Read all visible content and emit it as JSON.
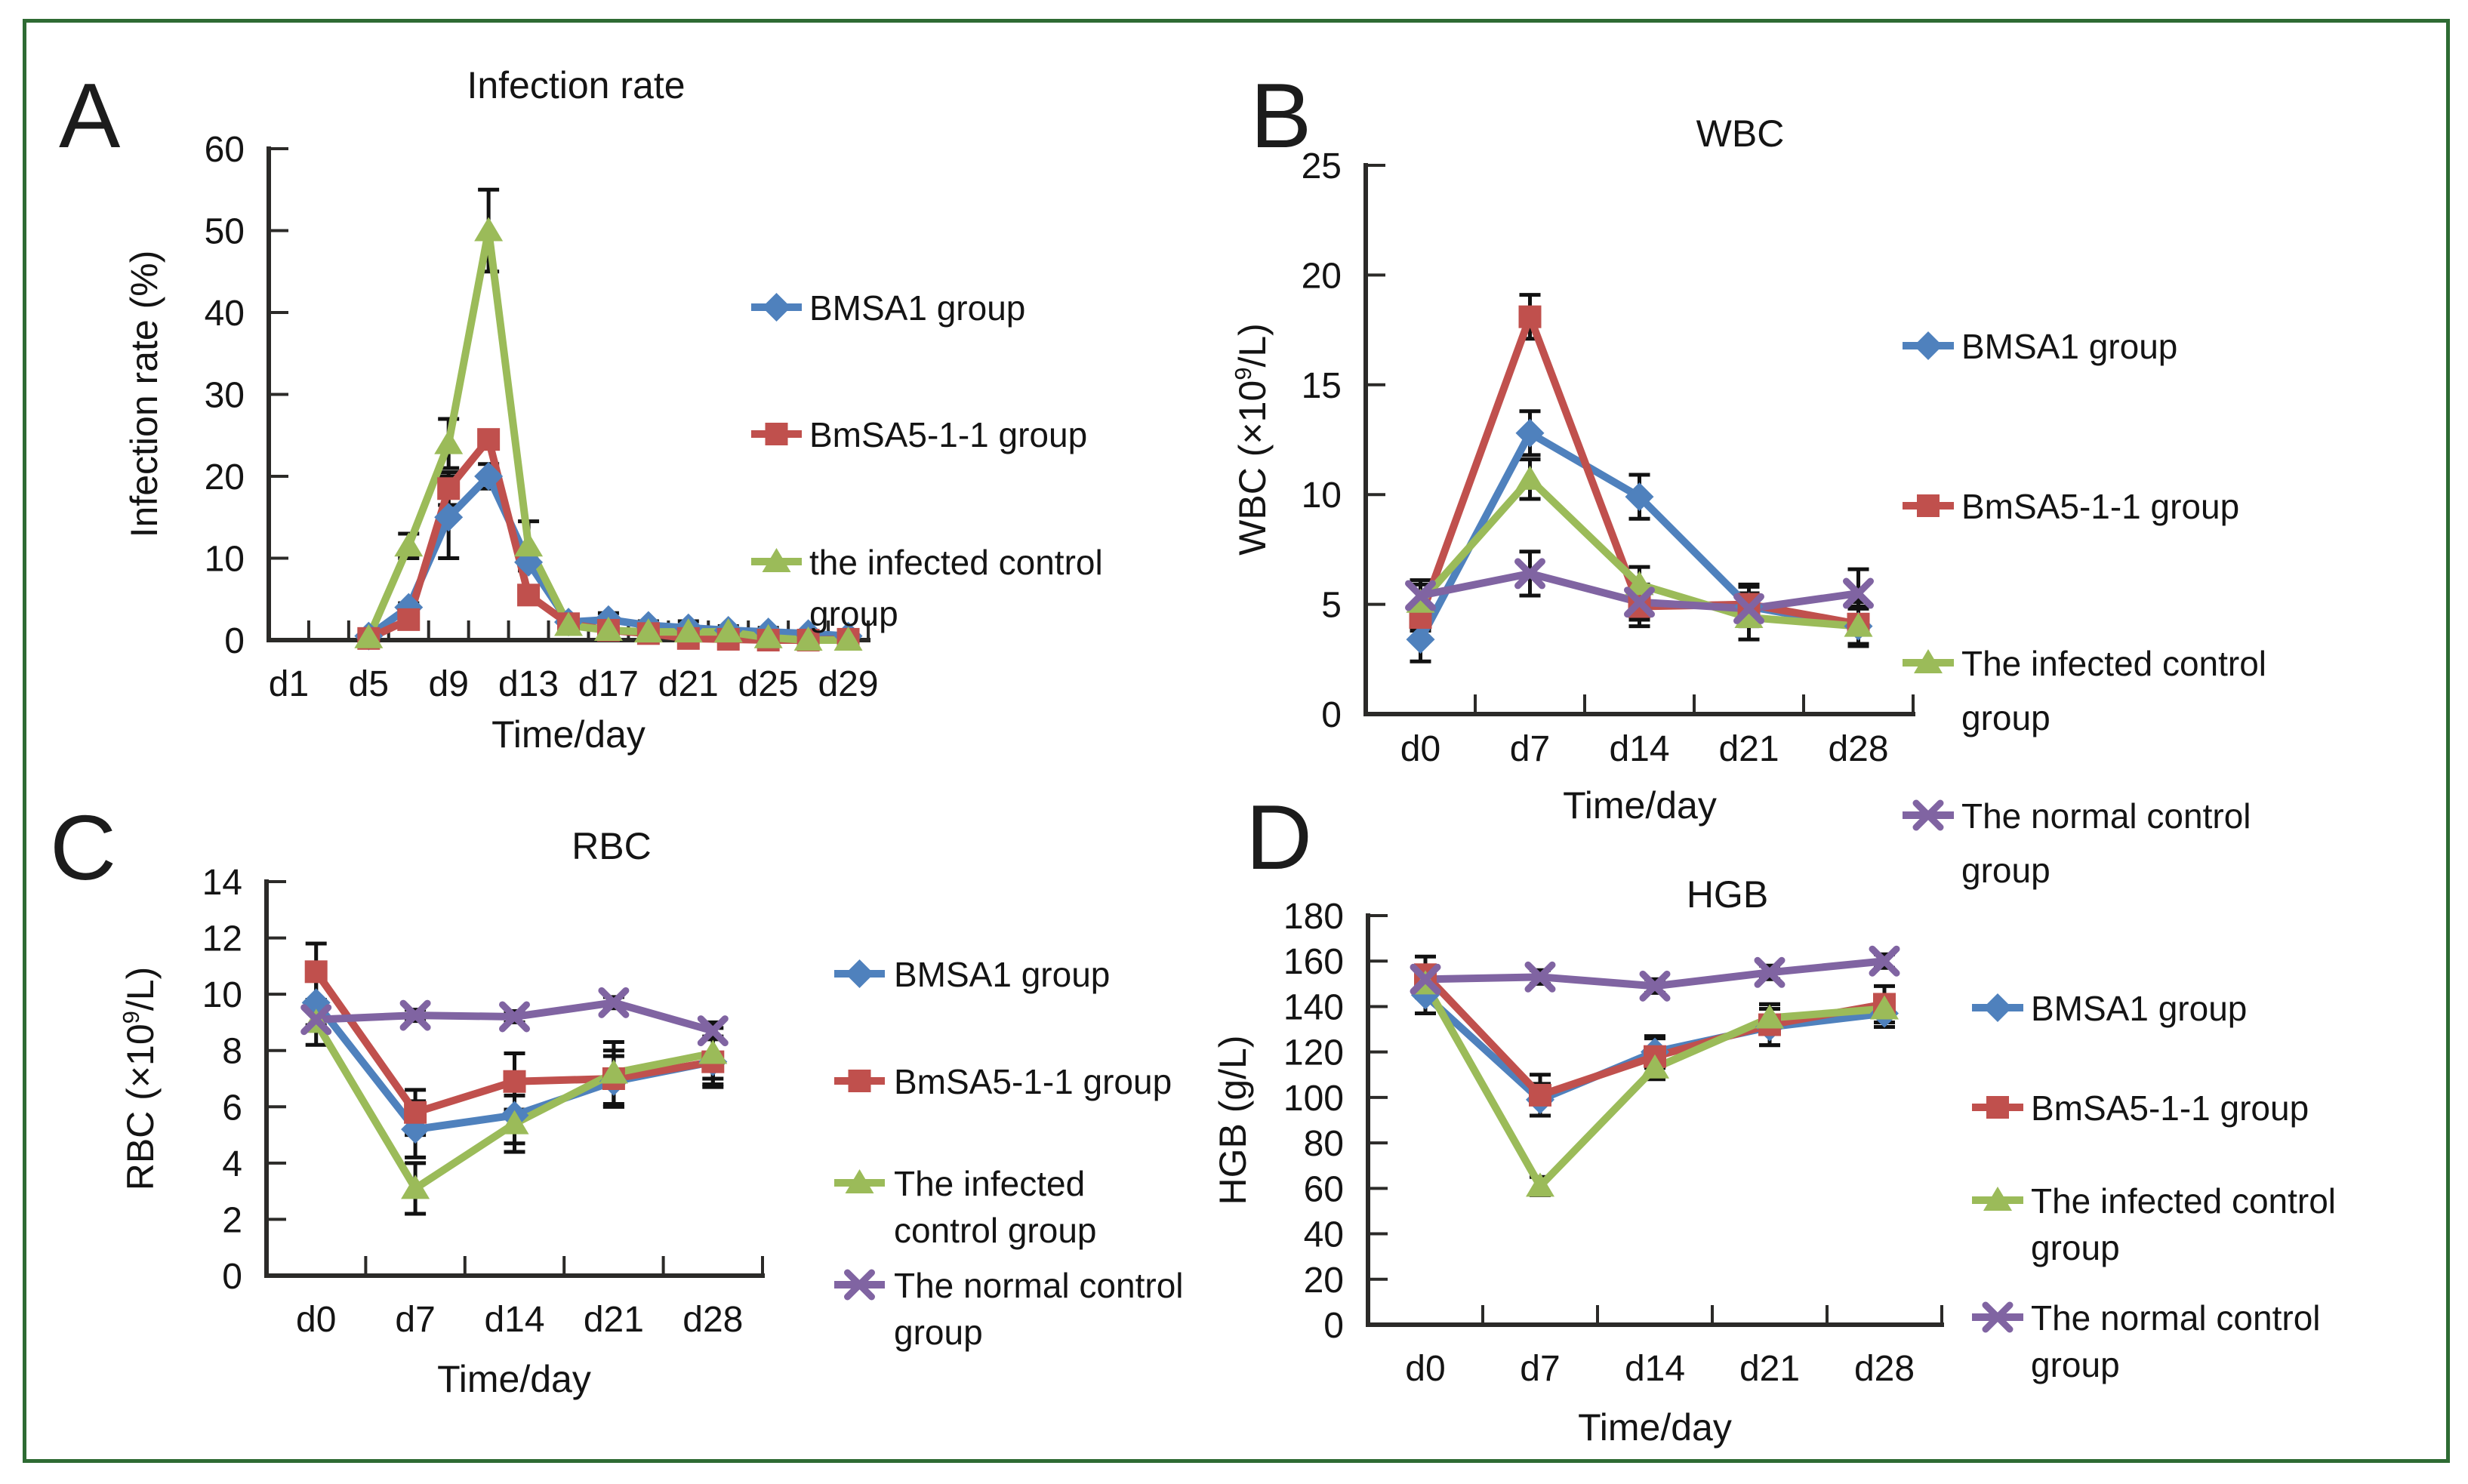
{
  "figure": {
    "panel_letters": [
      "A",
      "B",
      "C",
      "D"
    ],
    "colors": {
      "border": "#2E6B33",
      "axis": "#2b2a28",
      "text": "#141414",
      "error_bar": "#111111",
      "background": "#ffffff"
    }
  },
  "palette": {
    "blue": "#4F81BD",
    "red": "#C0504D",
    "green": "#9BBB59",
    "purple": "#8064A2"
  },
  "chart_data": [
    {
      "panel": "A",
      "type": "line",
      "title": "Infection rate",
      "ylabel": "Infection rate (%)",
      "xlabel": "Time/day",
      "ylim": [
        0,
        60
      ],
      "ytick_step": 10,
      "ytick_labels": [
        "0",
        "10",
        "20",
        "30",
        "40",
        "50",
        "60"
      ],
      "x_slot_days": [
        1,
        3,
        5,
        7,
        9,
        11,
        13,
        15,
        17,
        19,
        21,
        23,
        25,
        27,
        29
      ],
      "x_label_days": [
        1,
        5,
        9,
        13,
        17,
        21,
        25,
        29
      ],
      "x_tick_labels": [
        "d1",
        "d5",
        "d9",
        "d13",
        "d17",
        "d21",
        "d25",
        "d29"
      ],
      "grid": false,
      "legend_position": "right",
      "series": [
        {
          "name": "BMSA1 group",
          "color": "#4F81BD",
          "marker": "diamond",
          "days": [
            5,
            7,
            9,
            11,
            13,
            15,
            17,
            19,
            21,
            23,
            25,
            27,
            29
          ],
          "values": [
            0.5,
            4,
            15,
            20,
            9.5,
            2.2,
            2.5,
            1.8,
            1.5,
            1.2,
            1.0,
            0.8,
            0.5
          ],
          "errors": [
            0.3,
            0.5,
            5,
            1.5,
            1,
            0.5,
            0.8,
            0.5,
            0.8,
            0.5,
            0.5,
            0.3,
            0.3
          ]
        },
        {
          "name": "BmSA5-1-1 group",
          "color": "#C0504D",
          "marker": "square",
          "days": [
            5,
            7,
            9,
            11,
            13,
            15,
            17,
            19,
            21,
            23,
            25,
            27,
            29
          ],
          "values": [
            0.2,
            2.5,
            18.5,
            24.5,
            5.5,
            2.0,
            1.2,
            0.8,
            0.2,
            0.1,
            0,
            0,
            0.1
          ],
          "errors": [
            0.2,
            0.5,
            2,
            1,
            0.8,
            0.5,
            0.4,
            0.3,
            0.2,
            0.2,
            0.2,
            0.2,
            0.2
          ]
        },
        {
          "name": "the infected control group",
          "color": "#9BBB59",
          "marker": "triangle",
          "days": [
            5,
            7,
            9,
            11,
            13,
            15,
            17,
            19,
            21,
            23,
            25,
            27,
            29
          ],
          "values": [
            0.3,
            11.5,
            24,
            50,
            11.5,
            1.8,
            1.2,
            1.0,
            1.0,
            1.0,
            0.3,
            0,
            0
          ],
          "errors": [
            0.2,
            1.5,
            3,
            5,
            3,
            0.5,
            0.4,
            0.3,
            0.4,
            0.3,
            0.2,
            0.1,
            0.1
          ]
        }
      ],
      "legend": [
        [
          "BMSA1 group"
        ],
        [
          "BmSA5-1-1 group"
        ],
        [
          "the infected control",
          "group"
        ]
      ]
    },
    {
      "panel": "B",
      "type": "line",
      "title": "WBC",
      "ylabel": "WBC (×10^9/L)",
      "xlabel": "Time/day",
      "ylim": [
        0,
        25
      ],
      "ytick_step": 5,
      "ytick_labels": [
        "0",
        "5",
        "10",
        "15",
        "20",
        "25"
      ],
      "categories": [
        "d0",
        "d7",
        "d14",
        "d21",
        "d28"
      ],
      "grid": false,
      "legend_position": "right",
      "series": [
        {
          "name": "BMSA1 group",
          "color": "#4F81BD",
          "marker": "diamond",
          "values": [
            3.4,
            12.8,
            9.9,
            4.9,
            4.0
          ],
          "errors": [
            1.0,
            1.0,
            1.0,
            0.9,
            0.8
          ]
        },
        {
          "name": "BmSA5-1-1 group",
          "color": "#C0504D",
          "marker": "square",
          "values": [
            4.4,
            18.1,
            4.9,
            5.0,
            4.1
          ],
          "errors": [
            0.6,
            1.0,
            0.9,
            0.9,
            1.0
          ]
        },
        {
          "name": "The infected control group",
          "color": "#9BBB59",
          "marker": "triangle",
          "values": [
            5.1,
            10.7,
            5.9,
            4.4,
            4.0
          ],
          "errors": [
            0.8,
            0.9,
            0.8,
            1.0,
            0.9
          ]
        },
        {
          "name": "The normal control group",
          "color": "#8064A2",
          "marker": "x",
          "values": [
            5.4,
            6.4,
            5.1,
            4.8,
            5.5
          ],
          "errors": [
            0.7,
            1.0,
            0.8,
            0.7,
            1.1
          ]
        }
      ],
      "legend": [
        [
          "BMSA1 group"
        ],
        [
          "BmSA5-1-1 group"
        ],
        [
          "The infected control",
          "group"
        ],
        [
          "The normal control",
          "group"
        ]
      ]
    },
    {
      "panel": "C",
      "type": "line",
      "title": "RBC",
      "ylabel": "RBC (×10^9/L)",
      "xlabel": "Time/day",
      "ylim": [
        0,
        14
      ],
      "ytick_step": 2,
      "ytick_labels": [
        "0",
        "2",
        "4",
        "6",
        "8",
        "10",
        "12",
        "14"
      ],
      "categories": [
        "d0",
        "d7",
        "d14",
        "d21",
        "d28"
      ],
      "grid": false,
      "legend_position": "right",
      "series": [
        {
          "name": "BMSA1 group",
          "color": "#4F81BD",
          "marker": "diamond",
          "values": [
            9.7,
            5.2,
            5.7,
            6.9,
            7.6
          ],
          "errors": [
            0.8,
            1.0,
            1.0,
            0.9,
            0.8
          ]
        },
        {
          "name": "BmSA5-1-1 group",
          "color": "#C0504D",
          "marker": "square",
          "values": [
            10.8,
            5.8,
            6.9,
            7.0,
            7.6
          ],
          "errors": [
            1.0,
            0.8,
            1.0,
            1.0,
            0.9
          ]
        },
        {
          "name": "The infected control group",
          "color": "#9BBB59",
          "marker": "triangle",
          "values": [
            9.0,
            3.1,
            5.4,
            7.2,
            7.9
          ],
          "errors": [
            0.8,
            0.9,
            1.0,
            1.1,
            0.9
          ]
        },
        {
          "name": "The normal control group",
          "color": "#8064A2",
          "marker": "x",
          "values": [
            9.1,
            9.25,
            9.2,
            9.7,
            8.7
          ],
          "errors": [
            0.3,
            0.2,
            0.2,
            0.2,
            0.3
          ]
        }
      ],
      "legend": [
        [
          "BMSA1 group"
        ],
        [
          "BmSA5-1-1 group"
        ],
        [
          "The infected",
          "control group"
        ],
        [
          "The normal control",
          "group"
        ]
      ]
    },
    {
      "panel": "D",
      "type": "line",
      "title": "HGB",
      "ylabel": "HGB (g/L)",
      "xlabel": "Time/day",
      "ylim": [
        0,
        180
      ],
      "ytick_step": 20,
      "ytick_labels": [
        "0",
        "20",
        "40",
        "60",
        "80",
        "100",
        "120",
        "140",
        "160",
        "180"
      ],
      "categories": [
        "d0",
        "d7",
        "d14",
        "d21",
        "d28"
      ],
      "grid": false,
      "legend_position": "right",
      "series": [
        {
          "name": "BMSA1 group",
          "color": "#4F81BD",
          "marker": "diamond",
          "values": [
            145,
            99,
            120,
            131,
            137
          ],
          "errors": [
            8,
            7,
            7,
            8,
            6
          ]
        },
        {
          "name": "BmSA5-1-1 group",
          "color": "#C0504D",
          "marker": "square",
          "values": [
            154,
            101,
            118,
            132,
            141
          ],
          "errors": [
            8,
            9,
            8,
            9,
            8
          ]
        },
        {
          "name": "The infected control group",
          "color": "#9BBB59",
          "marker": "triangle",
          "values": [
            150,
            61,
            113,
            135,
            139
          ],
          "errors": [
            6,
            4,
            5,
            6,
            6
          ]
        },
        {
          "name": "The normal control group",
          "color": "#8064A2",
          "marker": "x",
          "values": [
            152,
            153,
            149,
            155,
            160
          ],
          "errors": [
            3,
            3,
            3,
            3,
            3
          ]
        }
      ],
      "legend": [
        [
          "BMSA1 group"
        ],
        [
          "BmSA5-1-1 group"
        ],
        [
          "The infected control",
          "group"
        ],
        [
          "The normal control",
          "group"
        ]
      ]
    }
  ]
}
